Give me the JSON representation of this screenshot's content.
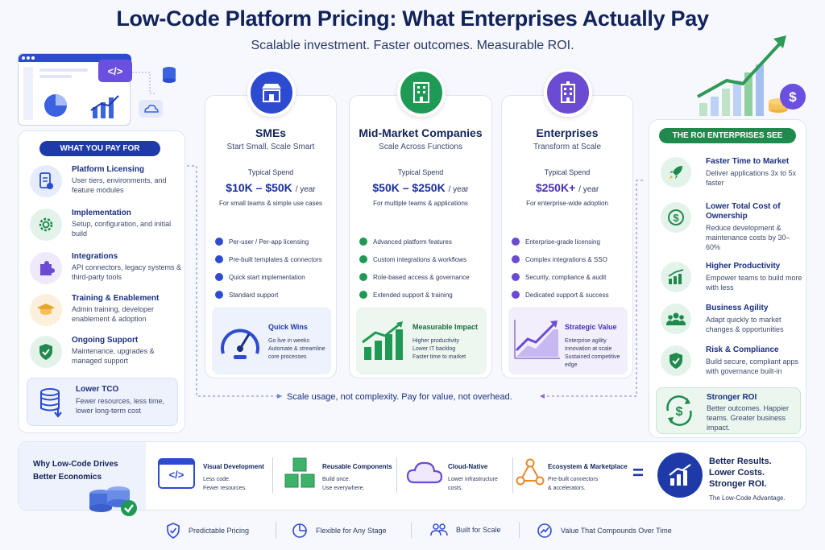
{
  "header": {
    "title": "Low-Code Platform Pricing: What Enterprises Actually Pay",
    "subtitle": "Scalable investment. Faster outcomes. Measurable ROI."
  },
  "illustration": {
    "code_glyph": "</>"
  },
  "left_panel": {
    "heading": "WHAT YOU PAY FOR",
    "items": [
      {
        "title": "Platform Licensing",
        "desc": "User tiers, environments, and feature modules",
        "icon": "document-icon"
      },
      {
        "title": "Implementation",
        "desc": "Setup, configuration, and initial build",
        "icon": "gear-icon"
      },
      {
        "title": "Integrations",
        "desc": "API connectors, legacy systems & third-party tools",
        "icon": "puzzle-icon"
      },
      {
        "title": "Training & Enablement",
        "desc": "Admin training, developer enablement & adoption",
        "icon": "graduation-cap-icon"
      },
      {
        "title": "Ongoing Support",
        "desc": "Maintenance, upgrades & managed support",
        "icon": "shield-check-icon"
      }
    ],
    "tco": {
      "title": "Lower TCO",
      "desc": "Fewer resources, less time, lower long-term cost"
    }
  },
  "tiers": [
    {
      "title": "SMEs",
      "sub": "Start Small, Scale Smart",
      "spend_label": "Typical Spend",
      "price": "$10K – $50K",
      "period": "/ year",
      "for": "For small teams & simple use cases",
      "features": [
        "Per-user / Per-app licensing",
        "Pre-built templates & connectors",
        "Quick start implementation",
        "Standard support"
      ],
      "box_title": "Quick Wins",
      "box_desc": [
        "Go live in weeks",
        "Automate & streamline",
        "core processes"
      ]
    },
    {
      "title": "Mid-Market Companies",
      "sub": "Scale Across Functions",
      "spend_label": "Typical Spend",
      "price": "$50K – $250K",
      "period": "/ year",
      "for": "For multiple teams & applications",
      "features": [
        "Advanced platform features",
        "Custom integrations & workflows",
        "Role-based access & governance",
        "Extended support & training"
      ],
      "box_title": "Measurable Impact",
      "box_desc": [
        "Higher productivity",
        "Lower IT backlog",
        "Faster time to market"
      ]
    },
    {
      "title": "Enterprises",
      "sub": "Transform at Scale",
      "spend_label": "Typical Spend",
      "price": "$250K+",
      "period": "/ year",
      "for": "For enterprise-wide adoption",
      "features": [
        "Enterprise-grade licensing",
        "Complex integrations & SSO",
        "Security, compliance & audit",
        "Dedicated support & success"
      ],
      "box_title": "Strategic Value",
      "box_desc": [
        "Enterprise agility",
        "Innovation at scale",
        "Sustained competitive edge"
      ]
    }
  ],
  "scale_note": "Scale usage, not complexity. Pay for value, not overhead.",
  "right_panel": {
    "heading": "THE ROI ENTERPRISES SEE",
    "items": [
      {
        "title": "Faster Time to Market",
        "desc": "Deliver applications 3x to 5x faster",
        "icon": "rocket-icon"
      },
      {
        "title": "Lower Total Cost of Ownership",
        "desc": "Reduce development & maintenance costs by 30–60%",
        "icon": "dollar-icon"
      },
      {
        "title": "Higher Productivity",
        "desc": "Empower teams to build more with less",
        "icon": "growth-chart-icon"
      },
      {
        "title": "Business Agility",
        "desc": "Adapt quickly to market changes & opportunities",
        "icon": "people-icon"
      },
      {
        "title": "Risk & Compliance",
        "desc": "Build secure, compliant apps with governance built-in",
        "icon": "shield-icon"
      }
    ],
    "stronger": {
      "title": "Stronger ROI",
      "desc": "Better outcomes. Happier teams. Greater business impact."
    }
  },
  "bottom": {
    "why_title": "Why Low-Code Drives Better Economics",
    "items": [
      {
        "title": "Visual Development",
        "desc": [
          "Less code.",
          "Fewer resources."
        ]
      },
      {
        "title": "Reusable Components",
        "desc": [
          "Build once.",
          "Use everywhere."
        ]
      },
      {
        "title": "Cloud-Native",
        "desc": [
          "Lower infrastructure",
          "costs."
        ]
      },
      {
        "title": "Ecosystem & Marketplace",
        "desc": [
          "Pre-built connectors",
          "& accelerators."
        ]
      }
    ],
    "equals": "=",
    "result": {
      "lines": [
        "Better Results.",
        "Lower Costs.",
        "Stronger ROI."
      ],
      "tag": "The Low-Code Advantage."
    }
  },
  "footer": [
    "Predictable Pricing",
    "Flexible for Any Stage",
    "Built for Scale",
    "Value That Compounds Over Time"
  ],
  "colors": {
    "navy": "#12235a",
    "blue": "#1e3aa8",
    "green": "#1f8a4c",
    "purple": "#6a4bd1"
  }
}
